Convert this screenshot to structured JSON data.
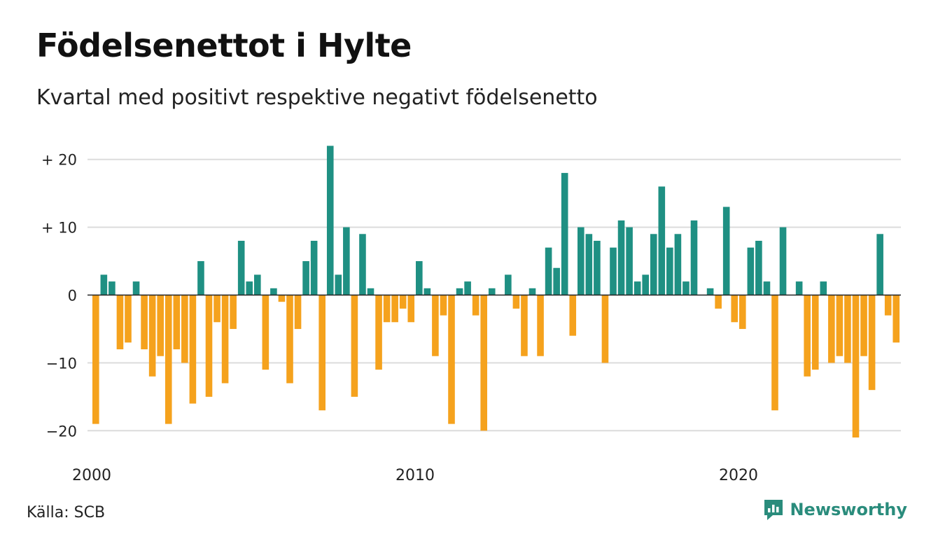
{
  "header": {
    "title": "Födelsenettot i Hylte",
    "subtitle": "Kvartal med positivt respektive negativt födelsenetto"
  },
  "footer": {
    "source": "Källa: SCB",
    "brand": "Newsworthy"
  },
  "colors": {
    "positive": "#1f9083",
    "negative": "#f5a21d",
    "grid": "#dcdcdc",
    "axis": "#222222",
    "brand": "#2a8c7c"
  },
  "chart_data": {
    "type": "bar",
    "title": "Födelsenettot i Hylte",
    "subtitle": "Kvartal med positivt respektive negativt födelsenetto",
    "xlabel": "",
    "ylabel": "",
    "ylim": [
      -21,
      22
    ],
    "grid": true,
    "yticks": [
      {
        "value": 20,
        "label": "+ 20"
      },
      {
        "value": 10,
        "label": "+ 10"
      },
      {
        "value": 0,
        "label": "0"
      },
      {
        "value": -10,
        "label": "−10"
      },
      {
        "value": -20,
        "label": "−20"
      }
    ],
    "xticks": [
      {
        "index": 0,
        "label": "2000"
      },
      {
        "index": 40,
        "label": "2010"
      },
      {
        "index": 80,
        "label": "2020"
      }
    ],
    "period_start": "2000 Q1",
    "values": [
      -19,
      3,
      2,
      -8,
      -7,
      2,
      -8,
      -12,
      -9,
      -19,
      -8,
      -10,
      -16,
      5,
      -15,
      -4,
      -13,
      -5,
      8,
      2,
      3,
      -11,
      1,
      -1,
      -13,
      -5,
      5,
      8,
      -17,
      22,
      3,
      10,
      -15,
      9,
      1,
      -11,
      -4,
      -4,
      -2,
      -4,
      5,
      1,
      -9,
      -3,
      -19,
      1,
      2,
      -3,
      -20,
      1,
      0,
      3,
      -2,
      -9,
      1,
      -9,
      7,
      4,
      18,
      -6,
      10,
      9,
      8,
      -10,
      7,
      11,
      10,
      2,
      3,
      9,
      16,
      7,
      9,
      2,
      11,
      0,
      1,
      -2,
      13,
      -4,
      -5,
      7,
      8,
      2,
      -17,
      10,
      0,
      2,
      -12,
      -11,
      2,
      -10,
      -9,
      -10,
      -21,
      -9,
      -14,
      9,
      -3,
      -7
    ]
  }
}
